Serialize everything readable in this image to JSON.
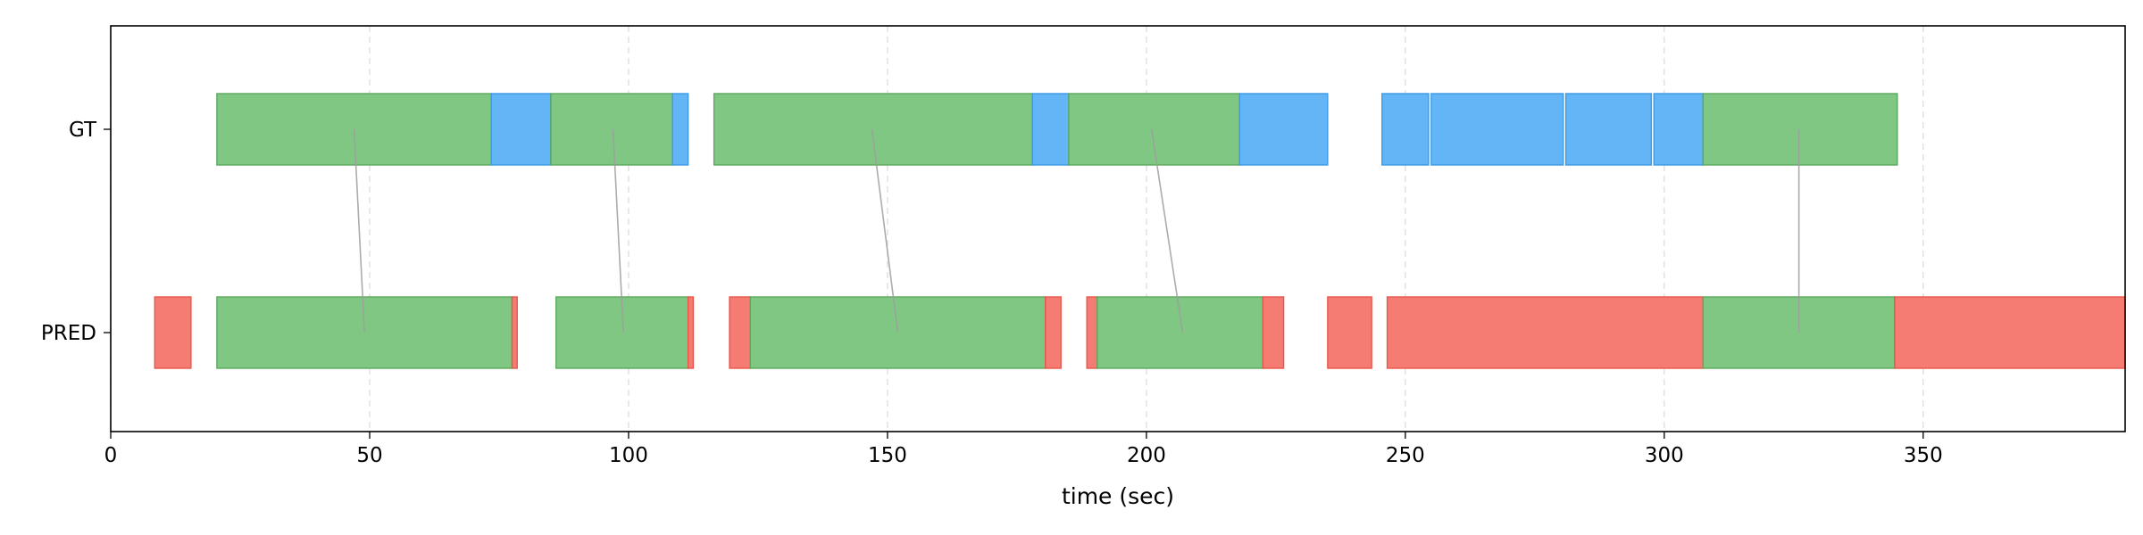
{
  "chart_data": {
    "type": "timeline",
    "xlabel": "time (sec)",
    "xlim": [
      0,
      389
    ],
    "x_ticks": [
      0,
      50,
      100,
      150,
      200,
      250,
      300,
      350
    ],
    "rows": [
      "GT",
      "PRED"
    ],
    "grid": "vertical dashed",
    "colors": {
      "matched": "#81c784",
      "gt_unmatched": "#64b5f6",
      "pred_unmatched": "#f47c72"
    },
    "gt_segments": [
      {
        "start": 20.5,
        "end": 73.5,
        "status": "matched"
      },
      {
        "start": 73.5,
        "end": 85,
        "status": "unmatched"
      },
      {
        "start": 85,
        "end": 108.5,
        "status": "matched"
      },
      {
        "start": 108.5,
        "end": 111.5,
        "status": "unmatched"
      },
      {
        "start": 116.5,
        "end": 178,
        "status": "matched"
      },
      {
        "start": 178,
        "end": 185,
        "status": "unmatched"
      },
      {
        "start": 185,
        "end": 218,
        "status": "matched"
      },
      {
        "start": 218,
        "end": 235,
        "status": "unmatched"
      },
      {
        "start": 245.5,
        "end": 254.5,
        "status": "unmatched"
      },
      {
        "start": 255,
        "end": 280.5,
        "status": "unmatched"
      },
      {
        "start": 281,
        "end": 297.5,
        "status": "unmatched"
      },
      {
        "start": 298,
        "end": 307.5,
        "status": "unmatched"
      },
      {
        "start": 307.5,
        "end": 345,
        "status": "matched"
      }
    ],
    "pred_segments": [
      {
        "start": 8.5,
        "end": 15.5,
        "status": "unmatched"
      },
      {
        "start": 20.5,
        "end": 77.5,
        "status": "matched"
      },
      {
        "start": 77.5,
        "end": 78.5,
        "status": "unmatched"
      },
      {
        "start": 86,
        "end": 111.5,
        "status": "matched"
      },
      {
        "start": 111.5,
        "end": 112.5,
        "status": "unmatched"
      },
      {
        "start": 119.5,
        "end": 123.5,
        "status": "unmatched"
      },
      {
        "start": 123.5,
        "end": 180.5,
        "status": "matched"
      },
      {
        "start": 180.5,
        "end": 183.5,
        "status": "unmatched"
      },
      {
        "start": 188.5,
        "end": 190.5,
        "status": "unmatched"
      },
      {
        "start": 190.5,
        "end": 222.5,
        "status": "matched"
      },
      {
        "start": 222.5,
        "end": 226.5,
        "status": "unmatched"
      },
      {
        "start": 235,
        "end": 243.5,
        "status": "unmatched"
      },
      {
        "start": 246.5,
        "end": 307.5,
        "status": "unmatched"
      },
      {
        "start": 307.5,
        "end": 344.5,
        "status": "matched"
      },
      {
        "start": 344.5,
        "end": 389,
        "status": "unmatched"
      }
    ],
    "matches": [
      {
        "gt": 47,
        "pred": 49
      },
      {
        "gt": 97,
        "pred": 99
      },
      {
        "gt": 147,
        "pred": 152
      },
      {
        "gt": 201,
        "pred": 207
      },
      {
        "gt": 326,
        "pred": 326
      }
    ]
  }
}
